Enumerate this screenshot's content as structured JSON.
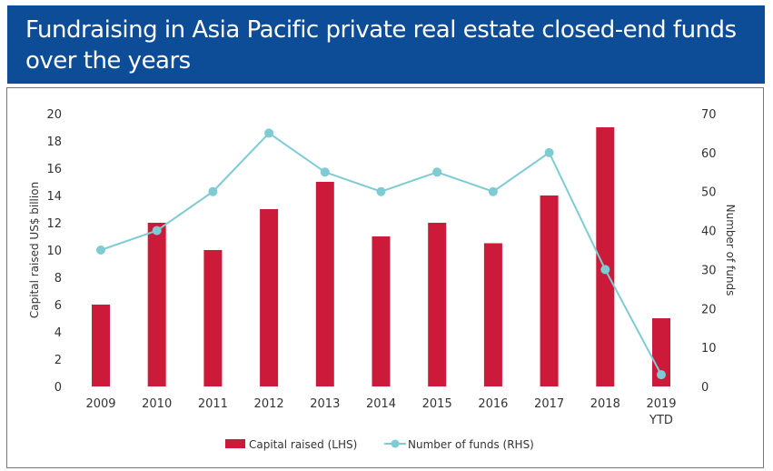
{
  "header": {
    "title": "Fundraising in Asia Pacific private real estate closed-end funds over the years"
  },
  "chart_data": {
    "type": "bar+line",
    "title": "Fundraising in Asia Pacific private real estate closed-end funds over the years",
    "categories": [
      "2009",
      "2010",
      "2011",
      "2012",
      "2013",
      "2014",
      "2015",
      "2016",
      "2017",
      "2018",
      "2019 YTD"
    ],
    "category_lines": [
      [
        "2009"
      ],
      [
        "2010"
      ],
      [
        "2011"
      ],
      [
        "2012"
      ],
      [
        "2013"
      ],
      [
        "2014"
      ],
      [
        "2015"
      ],
      [
        "2016"
      ],
      [
        "2017"
      ],
      [
        "2018"
      ],
      [
        "2019",
        "YTD"
      ]
    ],
    "series": [
      {
        "name": "Capital raised (LHS)",
        "type": "bar",
        "axis": "left",
        "color": "#cc1a3a",
        "values": [
          6,
          12,
          10,
          13,
          15,
          11,
          12,
          10.5,
          14,
          19,
          5
        ]
      },
      {
        "name": "Number of funds (RHS)",
        "type": "line",
        "axis": "right",
        "color": "#7ecbd3",
        "values": [
          35,
          40,
          50,
          65,
          55,
          50,
          55,
          50,
          60,
          30,
          3
        ]
      }
    ],
    "ylabel": "Capital raised US$ billion",
    "y2label": "Number of funds",
    "ylim": [
      0,
      20
    ],
    "yticks": [
      "0",
      "2",
      "4",
      "6",
      "8",
      "10",
      "12",
      "14",
      "16",
      "18",
      "20"
    ],
    "y2lim": [
      0,
      70
    ],
    "y2ticks": [
      "0",
      "10",
      "20",
      "30",
      "40",
      "50",
      "60",
      "70"
    ],
    "legend": "bottom",
    "grid": false
  }
}
